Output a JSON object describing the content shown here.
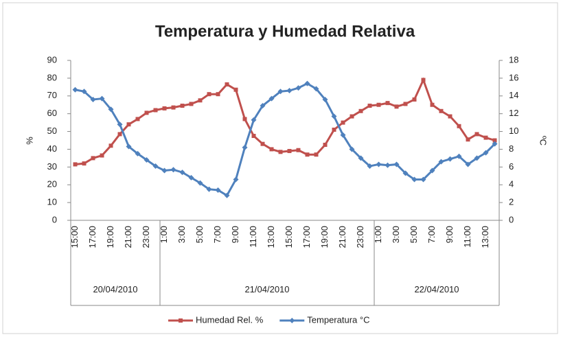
{
  "chart_data": {
    "type": "line",
    "title": "Temperatura y Humedad Relativa",
    "y_label": "%",
    "y2_label": "ºC",
    "categories": [
      "15:00",
      null,
      "17:00",
      null,
      "19:00",
      null,
      "21:00",
      null,
      "23:00",
      null,
      "1:00",
      null,
      "3:00",
      null,
      "5:00",
      null,
      "7:00",
      null,
      "9:00",
      null,
      "11:00",
      null,
      "13:00",
      null,
      "15:00",
      null,
      "17:00",
      null,
      "19:00",
      null,
      "21:00",
      null,
      "23:00",
      null,
      "1:00",
      null,
      "3:00",
      null,
      "5:00",
      null,
      "7:00",
      null,
      "9:00",
      null,
      "11:00",
      null,
      "13:00",
      null
    ],
    "x_groups": [
      {
        "label": "20/04/2010",
        "size": 10
      },
      {
        "label": "21/04/2010",
        "size": 24
      },
      {
        "label": "22/04/2010",
        "size": 14
      }
    ],
    "series": [
      {
        "name": "Humedad Rel. %",
        "color": "#c0504d",
        "marker": "square",
        "axis": "y",
        "values": [
          31.5,
          32,
          35,
          36.5,
          42,
          48.5,
          54,
          57,
          60.5,
          62,
          63,
          63.5,
          64.5,
          65.5,
          67.5,
          71,
          71,
          76.5,
          73.5,
          57,
          47.5,
          43,
          40,
          38.5,
          39,
          39.5,
          37,
          37,
          42.5,
          51,
          55,
          58.5,
          61.5,
          64.5,
          65,
          66,
          64,
          65.5,
          68,
          79,
          65,
          61.5,
          58.5,
          53,
          45.5,
          48.5,
          46.5,
          45
        ]
      },
      {
        "name": "Temperatura °C",
        "color": "#4f81bd",
        "marker": "diamond",
        "axis": "y2",
        "values": [
          14.7,
          14.5,
          13.6,
          13.7,
          12.5,
          10.8,
          8.3,
          7.5,
          6.8,
          6.1,
          5.6,
          5.7,
          5.4,
          4.8,
          4.2,
          3.5,
          3.4,
          2.8,
          4.6,
          8.2,
          11.3,
          12.9,
          13.7,
          14.5,
          14.6,
          14.9,
          15.4,
          14.8,
          13.6,
          11.7,
          9.6,
          8.0,
          7.0,
          6.1,
          6.3,
          6.2,
          6.3,
          5.3,
          4.6,
          4.6,
          5.6,
          6.6,
          6.9,
          7.2,
          6.3,
          7.0,
          7.6,
          8.6
        ]
      }
    ],
    "ylim": [
      0,
      90
    ],
    "yticks": [
      0,
      10,
      20,
      30,
      40,
      50,
      60,
      70,
      80,
      90
    ],
    "y2lim": [
      0,
      18
    ],
    "y2ticks": [
      0,
      2,
      4,
      6,
      8,
      10,
      12,
      14,
      16,
      18
    ],
    "grid": false,
    "legend": "bottom"
  }
}
